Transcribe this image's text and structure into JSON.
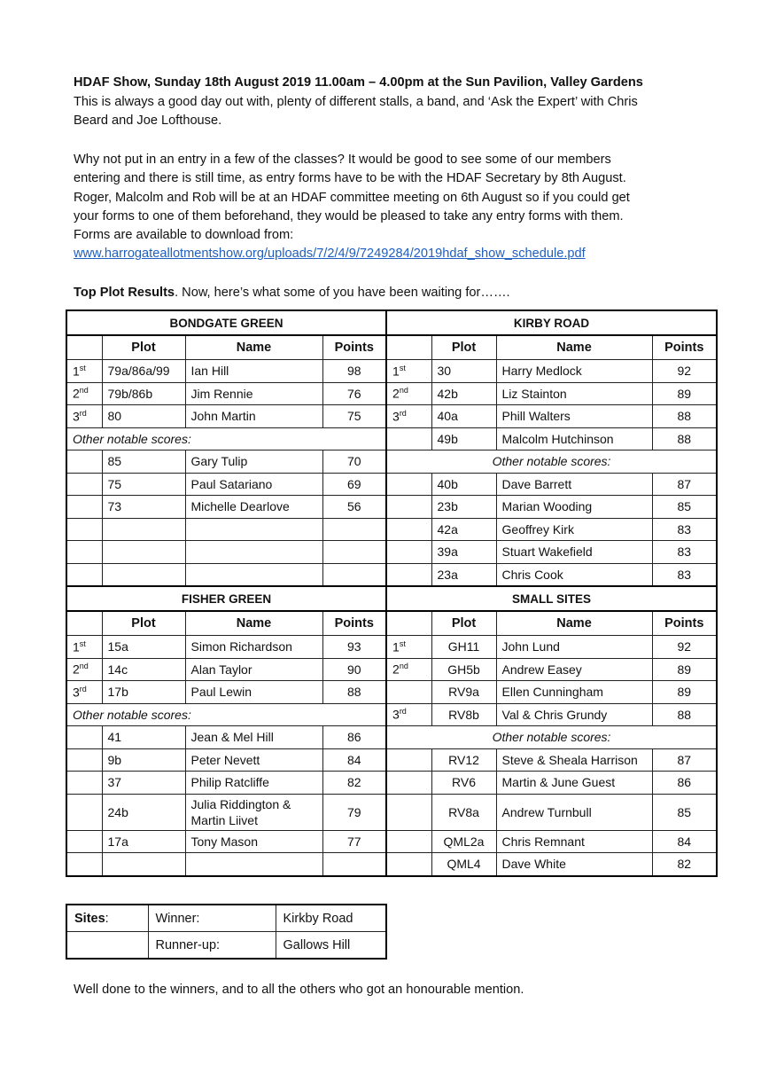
{
  "intro": {
    "heading": "HDAF Show, Sunday 18th August 2019  11.00am – 4.00pm at the Sun Pavilion, Valley Gardens",
    "para1_lines": [
      "This is always a good day out with, plenty of different stalls, a band, and ‘Ask the Expert’ with Chris",
      "Beard and Joe Lofthouse."
    ],
    "para2_lines": [
      "Why not put in an entry in a few of the classes?  It would be good to see some of our members",
      "entering and there is still time, as entry forms have to be with the HDAF Secretary by 8th August.",
      "Roger, Malcolm and Rob will be at an HDAF committee meeting on 6th August so if you could get",
      "your forms to one of them beforehand, they would be pleased to take any entry forms with them.",
      "Forms are available to download from:"
    ],
    "link": "www.harrogateallotmentshow.org/uploads/7/2/4/9/7249284/2019hdaf_show_schedule.pdf",
    "results_heading_bold": "Top Plot Results",
    "results_heading_rest": ".  Now, here’s what some of you have been waiting for……."
  },
  "table": {
    "col_headers": [
      "",
      "Plot",
      "Name",
      "Points"
    ],
    "sections": [
      {
        "left_title": "BONDGATE GREEN",
        "right_title": "KIRBY ROAD",
        "rows": [
          {
            "left": {
              "rank": "1",
              "sup": "st",
              "plot": "79a/86a/99",
              "name": "Ian Hill",
              "points": "98"
            },
            "right": {
              "rank": "1",
              "sup": "st",
              "plot": "30",
              "name": "Harry Medlock",
              "points": "92"
            }
          },
          {
            "left": {
              "rank": "2",
              "sup": "nd",
              "plot": "79b/86b",
              "name": "Jim Rennie",
              "points": "76"
            },
            "right": {
              "rank": "2",
              "sup": "nd",
              "plot": "42b",
              "name": "Liz Stainton",
              "points": "89"
            }
          },
          {
            "left": {
              "rank": "3",
              "sup": "rd",
              "plot": "80",
              "name": "John Martin",
              "points": "75"
            },
            "right": {
              "rank": "3",
              "sup": "rd",
              "plot": "40a",
              "name": "Phill Walters",
              "points": "88"
            }
          },
          {
            "left": {
              "note": "Other notable scores:"
            },
            "right": {
              "rank": "",
              "sup": "",
              "plot": "49b",
              "name": "Malcolm Hutchinson",
              "points": "88"
            }
          },
          {
            "left": {
              "rank": "",
              "sup": "",
              "plot": "85",
              "name": "Gary Tulip",
              "points": "70"
            },
            "right": {
              "note": "Other notable scores:"
            }
          },
          {
            "left": {
              "rank": "",
              "sup": "",
              "plot": "75",
              "name": "Paul Satariano",
              "points": "69"
            },
            "right": {
              "rank": "",
              "sup": "",
              "plot": "40b",
              "name": "Dave Barrett",
              "points": "87"
            }
          },
          {
            "left": {
              "rank": "",
              "sup": "",
              "plot": "73",
              "name": "Michelle Dearlove",
              "points": "56"
            },
            "right": {
              "rank": "",
              "sup": "",
              "plot": "23b",
              "name": "Marian Wooding",
              "points": "85"
            }
          },
          {
            "left": {
              "rank": "",
              "sup": "",
              "plot": "",
              "name": "",
              "points": ""
            },
            "right": {
              "rank": "",
              "sup": "",
              "plot": "42a",
              "name": "Geoffrey Kirk",
              "points": "83"
            }
          },
          {
            "left": {
              "rank": "",
              "sup": "",
              "plot": "",
              "name": "",
              "points": ""
            },
            "right": {
              "rank": "",
              "sup": "",
              "plot": "39a",
              "name": "Stuart Wakefield",
              "points": "83"
            }
          },
          {
            "left": {
              "rank": "",
              "sup": "",
              "plot": "",
              "name": "",
              "points": ""
            },
            "right": {
              "rank": "",
              "sup": "",
              "plot": "23a",
              "name": "Chris Cook",
              "points": "83"
            }
          }
        ]
      },
      {
        "left_title": "FISHER GREEN",
        "right_title": "SMALL SITES",
        "rows": [
          {
            "left": {
              "rank": "1",
              "sup": "st",
              "plot": "15a",
              "name": "Simon Richardson",
              "points": "93"
            },
            "right": {
              "rank": "1",
              "sup": "st",
              "plot": "GH11",
              "name": "John Lund",
              "points": "92"
            }
          },
          {
            "left": {
              "rank": "2",
              "sup": "nd",
              "plot": "14c",
              "name": "Alan Taylor",
              "points": "90"
            },
            "right": {
              "rank": "2",
              "sup": "nd",
              "plot": "GH5b",
              "name": "Andrew Easey",
              "points": "89"
            }
          },
          {
            "left": {
              "rank": "3",
              "sup": "rd",
              "plot": "17b",
              "name": "Paul Lewin",
              "points": "88"
            },
            "right": {
              "rank": "",
              "sup": "",
              "plot": "RV9a",
              "name": "Ellen Cunningham",
              "points": "89"
            }
          },
          {
            "left": {
              "note": "Other notable scores:"
            },
            "right": {
              "rank": "3",
              "sup": "rd",
              "plot": "RV8b",
              "name": "Val & Chris Grundy",
              "points": "88"
            }
          },
          {
            "left": {
              "rank": "",
              "sup": "",
              "plot": "41",
              "name": "Jean & Mel Hill",
              "points": "86"
            },
            "right": {
              "note": "Other notable scores:"
            }
          },
          {
            "left": {
              "rank": "",
              "sup": "",
              "plot": "9b",
              "name": "Peter Nevett",
              "points": "84"
            },
            "right": {
              "rank": "",
              "sup": "",
              "plot": "RV12",
              "name": "Steve & Sheala Harrison",
              "points": "87"
            }
          },
          {
            "left": {
              "rank": "",
              "sup": "",
              "plot": "37",
              "name": "Philip Ratcliffe",
              "points": "82"
            },
            "right": {
              "rank": "",
              "sup": "",
              "plot": "RV6",
              "name": "Martin & June Guest",
              "points": "86"
            }
          },
          {
            "left": {
              "rank": "",
              "sup": "",
              "plot": "24b",
              "name": "Julia Riddington & Martin Liivet",
              "points": "79"
            },
            "right": {
              "rank": "",
              "sup": "",
              "plot": "RV8a",
              "name": "Andrew Turnbull",
              "points": "85"
            }
          },
          {
            "left": {
              "rank": "",
              "sup": "",
              "plot": "17a",
              "name": "Tony Mason",
              "points": "77"
            },
            "right": {
              "rank": "",
              "sup": "",
              "plot": "QML2a",
              "name": "Chris Remnant",
              "points": "84"
            }
          },
          {
            "left": {
              "rank": "",
              "sup": "",
              "plot": "",
              "name": "",
              "points": ""
            },
            "right": {
              "rank": "",
              "sup": "",
              "plot": "QML4",
              "name": "Dave White",
              "points": "82"
            }
          }
        ]
      }
    ]
  },
  "sites": {
    "label_bold": "Sites",
    "label_rest": ":",
    "rows": [
      {
        "role": "Winner:",
        "site": "Kirkby Road"
      },
      {
        "role": "Runner-up:",
        "site": "Gallows Hill"
      }
    ]
  },
  "closing": "Well done to the winners, and to all the others who got an honourable mention."
}
